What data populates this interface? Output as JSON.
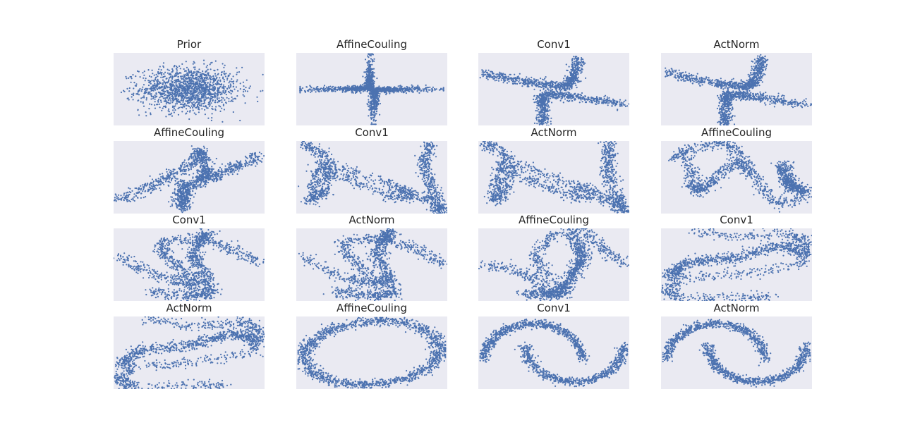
{
  "figure": {
    "point_color": "#4c72b0",
    "panel_background": "#eaeaf2",
    "grid": false,
    "axis_ticks": false
  },
  "chart_data": [
    {
      "type": "scatter",
      "title": "Prior",
      "shape": "gaussian",
      "xlim": [
        -4,
        4
      ],
      "ylim": [
        -3,
        3
      ],
      "n_points": 1500
    },
    {
      "type": "scatter",
      "title": "AffineCouling",
      "shape": "cross-spike",
      "xlim": [
        -4,
        4
      ],
      "ylim": [
        -3,
        3
      ],
      "n_points": 1500
    },
    {
      "type": "scatter",
      "title": "Conv1",
      "shape": "split-cross",
      "xlim": [
        -4,
        4
      ],
      "ylim": [
        -3,
        3
      ],
      "n_points": 1500
    },
    {
      "type": "scatter",
      "title": "ActNorm",
      "shape": "split-cross",
      "xlim": [
        -4,
        4
      ],
      "ylim": [
        -3,
        3
      ],
      "n_points": 1500
    },
    {
      "type": "scatter",
      "title": "AffineCouling",
      "shape": "swirl-line",
      "xlim": [
        -4,
        4
      ],
      "ylim": [
        -3,
        3
      ],
      "n_points": 1500
    },
    {
      "type": "scatter",
      "title": "Conv1",
      "shape": "n-shape",
      "xlim": [
        -4,
        4
      ],
      "ylim": [
        -3,
        3
      ],
      "n_points": 1500
    },
    {
      "type": "scatter",
      "title": "ActNorm",
      "shape": "n-shape",
      "xlim": [
        -4,
        4
      ],
      "ylim": [
        -3,
        3
      ],
      "n_points": 1500
    },
    {
      "type": "scatter",
      "title": "AffineCouling",
      "shape": "n-shape-bent",
      "xlim": [
        -4,
        4
      ],
      "ylim": [
        -3,
        3
      ],
      "n_points": 1500
    },
    {
      "type": "scatter",
      "title": "Conv1",
      "shape": "s-shape",
      "xlim": [
        -4,
        4
      ],
      "ylim": [
        -3,
        3
      ],
      "n_points": 1500
    },
    {
      "type": "scatter",
      "title": "ActNorm",
      "shape": "s-shape",
      "xlim": [
        -4,
        4
      ],
      "ylim": [
        -3,
        3
      ],
      "n_points": 1500
    },
    {
      "type": "scatter",
      "title": "AffineCouling",
      "shape": "s-shape-wide",
      "xlim": [
        -4,
        4
      ],
      "ylim": [
        -3,
        3
      ],
      "n_points": 1500
    },
    {
      "type": "scatter",
      "title": "Conv1",
      "shape": "z-ellipse",
      "xlim": [
        -4,
        4
      ],
      "ylim": [
        -3,
        3
      ],
      "n_points": 1500
    },
    {
      "type": "scatter",
      "title": "ActNorm",
      "shape": "z-ellipse",
      "xlim": [
        -4,
        4
      ],
      "ylim": [
        -3,
        3
      ],
      "n_points": 1500
    },
    {
      "type": "scatter",
      "title": "AffineCouling",
      "shape": "ellipse-band",
      "xlim": [
        -4,
        4
      ],
      "ylim": [
        -3,
        3
      ],
      "n_points": 1500
    },
    {
      "type": "scatter",
      "title": "Conv1",
      "shape": "two-moons",
      "xlim": [
        -4,
        4
      ],
      "ylim": [
        -3,
        3
      ],
      "n_points": 1500
    },
    {
      "type": "scatter",
      "title": "ActNorm",
      "shape": "two-moons",
      "xlim": [
        -4,
        4
      ],
      "ylim": [
        -3,
        3
      ],
      "n_points": 1500
    }
  ]
}
